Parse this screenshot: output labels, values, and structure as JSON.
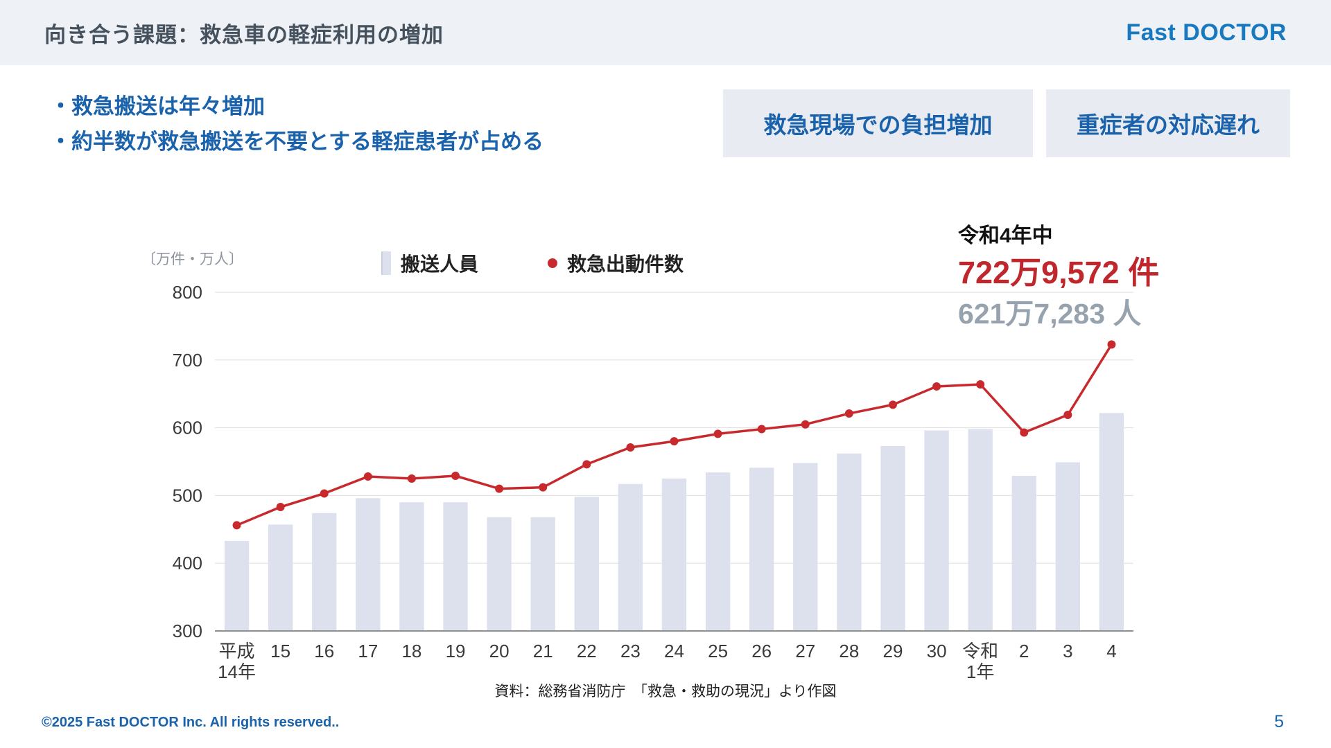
{
  "header": {
    "title": "向き合う課題：救急車の軽症利用の増加",
    "logo": "Fast DOCTOR"
  },
  "bullets": [
    "・救急搬送は年々増加",
    "・約半数が救急搬送を不要とする軽症患者が占める"
  ],
  "callouts": [
    "救急現場での負担増加",
    "重症者の対応遅れ"
  ],
  "annotation": {
    "period": "令和4年中",
    "dispatch_count": "722万9,572 件",
    "transport_count": "621万7,283 人"
  },
  "chart_data": {
    "type": "bar",
    "subtype": "bar+line combo",
    "title": "",
    "unit_label": "〔万件・万人〕",
    "categories": [
      "平成\n14年",
      "15",
      "16",
      "17",
      "18",
      "19",
      "20",
      "21",
      "22",
      "23",
      "24",
      "25",
      "26",
      "27",
      "28",
      "29",
      "30",
      "令和\n1年",
      "2",
      "3",
      "4"
    ],
    "series": [
      {
        "name": "搬送人員",
        "type": "bar",
        "color": "#dce1ed",
        "values": [
          433,
          457,
          474,
          496,
          490,
          490,
          468,
          468,
          498,
          517,
          525,
          534,
          541,
          548,
          562,
          573,
          596,
          598,
          529,
          549,
          621.7
        ]
      },
      {
        "name": "救急出動件数",
        "type": "line",
        "color": "#c8292d",
        "values": [
          456,
          483,
          503,
          528,
          525,
          529,
          510,
          512,
          546,
          571,
          580,
          591,
          598,
          605,
          621,
          634,
          661,
          664,
          593,
          619,
          722.9
        ]
      }
    ],
    "ylim": [
      300,
      800
    ],
    "yticks": [
      300,
      400,
      500,
      600,
      700,
      800
    ],
    "xlabel": "",
    "ylabel": "万件・万人",
    "grid": true,
    "legend_position": "top"
  },
  "source": "資料：総務省消防庁　「救急・救助の現況」より作図",
  "footer": {
    "copyright": "©2025  Fast DOCTOR Inc. All rights reserved..",
    "page": "5"
  },
  "colors": {
    "accent_blue": "#1a62ab",
    "logo_blue": "#1878c0",
    "red": "#c8292d",
    "bar_fill": "#dce1ed",
    "gray_number": "#97a2af",
    "header_band": "#eef1f5",
    "callout_bg": "#e8ebf1"
  }
}
